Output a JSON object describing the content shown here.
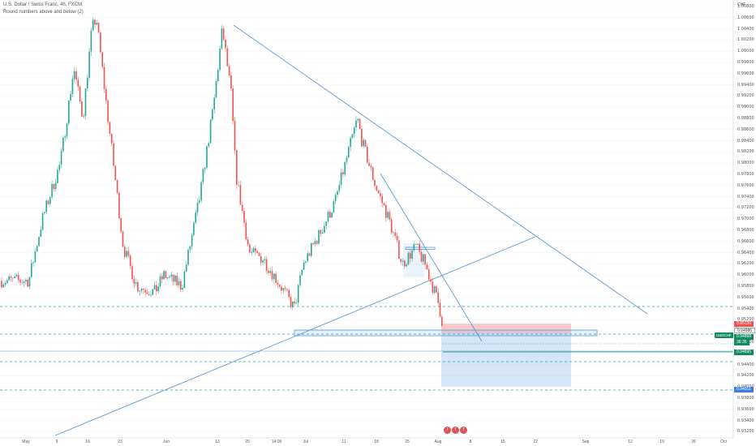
{
  "header": {
    "title": "U.S. Dollar / Swiss Franc, 4h, FXCM",
    "indicator": "Round numbers above and below (2)"
  },
  "currency": "CHF",
  "price_axis": {
    "labels": [
      "1.00800",
      "1.00600",
      "1.00400",
      "1.00200",
      "1.00000",
      "0.99800",
      "0.99600",
      "0.99400",
      "0.99200",
      "0.99000",
      "0.98800",
      "0.98600",
      "0.98400",
      "0.98200",
      "0.98000",
      "0.97800",
      "0.97600",
      "0.97400",
      "0.97200",
      "0.97000",
      "0.96800",
      "0.96600",
      "0.96400",
      "0.96200",
      "0.96000",
      "0.95800",
      "0.95600",
      "0.95400",
      "0.95200",
      "0.95000",
      "0.94800",
      "0.94600",
      "0.94400",
      "0.94200",
      "0.94000",
      "0.93800",
      "0.93600",
      "0.93400",
      "0.93200"
    ],
    "values": [
      1.008,
      1.006,
      1.004,
      1.002,
      1.0,
      0.998,
      0.996,
      0.994,
      0.992,
      0.99,
      0.988,
      0.986,
      0.984,
      0.982,
      0.98,
      0.978,
      0.976,
      0.974,
      0.972,
      0.97,
      0.968,
      0.966,
      0.964,
      0.962,
      0.96,
      0.958,
      0.956,
      0.954,
      0.952,
      0.95,
      0.948,
      0.946,
      0.944,
      0.942,
      0.94,
      0.938,
      0.936,
      0.934,
      0.932
    ]
  },
  "time_axis": [
    "May",
    "9",
    "16",
    "23",
    "Jun",
    "13",
    "20",
    "14:00",
    "Jul",
    "11",
    "18",
    "25",
    "Aug",
    "8",
    "15",
    "22",
    "Sep",
    "12",
    "19",
    "26",
    "Oct"
  ],
  "markers": {
    "symbol": "USDCHF",
    "stop": {
      "label": "0.95120",
      "value": 0.9512
    },
    "entry": {
      "label": "0.94986",
      "value": 0.94986
    },
    "current": {
      "label": "0.94868",
      "value": 0.94868,
      "countdown": "36:35"
    },
    "level": {
      "label": "0.94695",
      "value": 0.94695
    },
    "target": {
      "label": "0.94011",
      "value": 0.94011
    }
  },
  "events": [
    "!",
    "!",
    "!"
  ],
  "colors": {
    "up": "#26a69a",
    "down": "#ef5350",
    "trendline": "#5b9bd5",
    "dashed_level": "#26a69a",
    "stop_zone": "#ef5350",
    "target_zone": "#5d9be8"
  },
  "chart_data": {
    "type": "candlestick",
    "symbol": "USDCHF",
    "timeframe": "4h",
    "close_path": [
      [
        "May-02",
        0.959
      ],
      [
        "May-05",
        0.97
      ],
      [
        "May-09",
        0.98
      ],
      [
        "May-12",
        0.997
      ],
      [
        "May-14",
        0.988
      ],
      [
        "May-16",
        1.004
      ],
      [
        "May-17",
        1.006
      ],
      [
        "May-19",
        0.992
      ],
      [
        "May-23",
        0.965
      ],
      [
        "May-26",
        0.958
      ],
      [
        "May-30",
        0.957
      ],
      [
        "Jun-01",
        0.96
      ],
      [
        "Jun-05",
        0.958
      ],
      [
        "Jun-09",
        0.974
      ],
      [
        "Jun-12",
        0.99
      ],
      [
        "Jun-14",
        1.004
      ],
      [
        "Jun-16",
        0.992
      ],
      [
        "Jun-17",
        0.978
      ],
      [
        "Jun-20",
        0.964
      ],
      [
        "Jun-23",
        0.963
      ],
      [
        "Jun-27",
        0.958
      ],
      [
        "Jun-30",
        0.954
      ],
      [
        "Jul-02",
        0.962
      ],
      [
        "Jul-06",
        0.968
      ],
      [
        "Jul-09",
        0.973
      ],
      [
        "Jul-12",
        0.982
      ],
      [
        "Jul-14",
        0.988
      ],
      [
        "Jul-15",
        0.984
      ],
      [
        "Jul-18",
        0.976
      ],
      [
        "Jul-21",
        0.97
      ],
      [
        "Jul-24",
        0.962
      ],
      [
        "Jul-27",
        0.965
      ],
      [
        "Jul-29",
        0.962
      ],
      [
        "Aug-01",
        0.955
      ],
      [
        "Aug-02",
        0.951
      ],
      [
        "Aug-03",
        0.9487
      ]
    ],
    "horizontal_levels": [
      0.954,
      0.9495,
      0.9455,
      0.9401
    ],
    "trendlines": [
      {
        "from": [
          "Jun-16",
          1.005
        ],
        "to": [
          "Aug-28",
          0.953
        ]
      },
      {
        "from": [
          "May-06",
          0.932
        ],
        "to": [
          "Aug-17",
          0.967
        ]
      },
      {
        "from": [
          "Jul-18",
          0.977
        ],
        "to": [
          "Aug-06",
          0.948
        ]
      }
    ],
    "position": {
      "side": "short",
      "entry": 0.94986,
      "stop": 0.9512,
      "target": 0.94011
    }
  }
}
